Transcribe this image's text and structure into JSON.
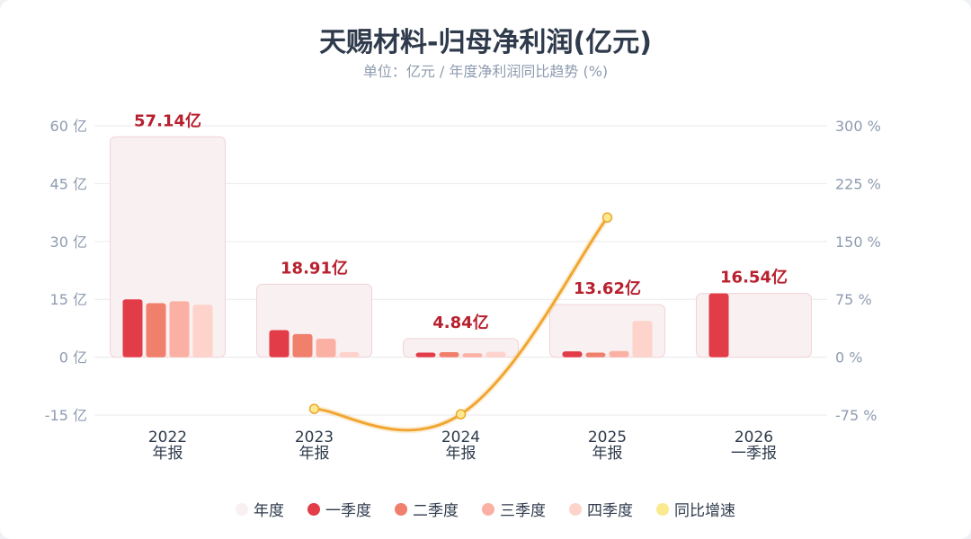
{
  "header": {
    "title": "天赐材料-归母净利润(亿元)",
    "subtitle": "单位：亿元 / 年度净利润同比趋势 (%)"
  },
  "colors": {
    "annual": "#f9f0f1",
    "annual_border": "#f1d3d8",
    "q1": "#e23c48",
    "q2": "#f07f6c",
    "q3": "#fbb0a4",
    "q4": "#fdd3cc",
    "yoy_line": "#f0a630",
    "yoy_marker": "#fbe98f",
    "total_label": "#b8202e",
    "grid": "#e8eaee"
  },
  "chart_data": {
    "type": "bar",
    "title": "天赐材料-归母净利润(亿元)",
    "subtitle": "单位：亿元 / 年度净利润同比趋势 (%)",
    "categories": [
      {
        "year": "2022",
        "period": "年报"
      },
      {
        "year": "2023",
        "period": "年报"
      },
      {
        "year": "2024",
        "period": "年报"
      },
      {
        "year": "2025",
        "period": "年报"
      },
      {
        "year": "2026",
        "period": "一季报"
      }
    ],
    "annual_totals": [
      57.14,
      18.91,
      4.84,
      13.62,
      16.54
    ],
    "total_labels": [
      "57.14亿",
      "18.91亿",
      "4.84亿",
      "13.62亿",
      "16.54亿"
    ],
    "series": [
      {
        "name": "年度",
        "values": [
          57.14,
          18.91,
          4.84,
          13.62,
          16.54
        ]
      },
      {
        "name": "一季度",
        "values": [
          15.0,
          7.0,
          1.2,
          1.5,
          16.54
        ]
      },
      {
        "name": "二季度",
        "values": [
          14.0,
          6.0,
          1.3,
          1.2,
          null
        ]
      },
      {
        "name": "三季度",
        "values": [
          14.5,
          4.8,
          1.0,
          1.6,
          null
        ]
      },
      {
        "name": "四季度",
        "values": [
          13.6,
          1.3,
          1.4,
          9.4,
          null
        ]
      },
      {
        "name": "同比增速",
        "values": [
          null,
          -67,
          -74,
          181,
          null
        ],
        "axis": "right",
        "type": "line"
      }
    ],
    "left_axis": {
      "range": [
        -15,
        60
      ],
      "ticks": [
        -15,
        0,
        15,
        30,
        45,
        60
      ],
      "unit": "亿"
    },
    "right_axis": {
      "range": [
        -75,
        300
      ],
      "ticks": [
        -75,
        0,
        75,
        150,
        225,
        300
      ],
      "unit": "%"
    },
    "grid": true,
    "legend_position": "bottom"
  },
  "legend": [
    {
      "label": "年度",
      "color": "#f9f0f1"
    },
    {
      "label": "一季度",
      "color": "#e23c48"
    },
    {
      "label": "二季度",
      "color": "#f07f6c"
    },
    {
      "label": "三季度",
      "color": "#fbb0a4"
    },
    {
      "label": "四季度",
      "color": "#fdd3cc"
    },
    {
      "label": "同比增速",
      "color": "#fbe98f"
    }
  ]
}
